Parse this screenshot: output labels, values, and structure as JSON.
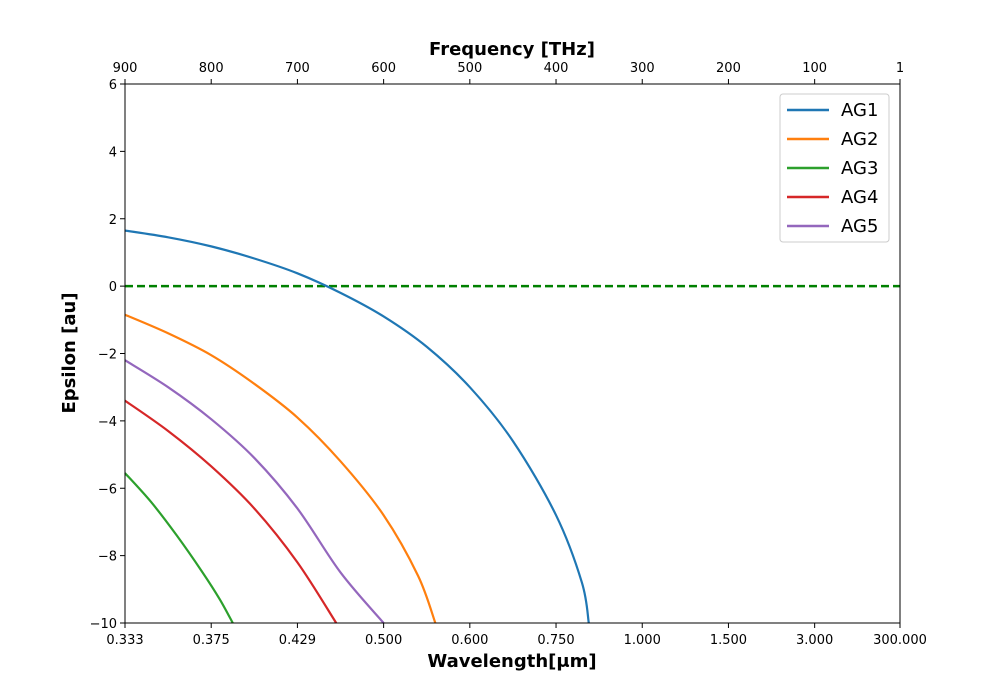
{
  "chart_data": {
    "type": "line",
    "xlabel": "Wavelength[μm]",
    "x2label": "Frequency [THz]",
    "ylabel": "Epsilon [au]",
    "ylim": [
      -10,
      6
    ],
    "y_ticks": [
      6,
      4,
      2,
      0,
      -2,
      -4,
      -6,
      -8,
      -10
    ],
    "y_tick_labels": [
      "6",
      "4",
      "2",
      "0",
      "−2",
      "−4",
      "−6",
      "−8",
      "−10"
    ],
    "x_tick_labels": [
      "0.333",
      "0.375",
      "0.429",
      "0.500",
      "0.600",
      "0.750",
      "1.000",
      "1.500",
      "3.000",
      "300.000"
    ],
    "x_tick_values": [
      0.333,
      0.375,
      0.429,
      0.5,
      0.6,
      0.75,
      1.0,
      1.5,
      3.0,
      300.0
    ],
    "top_tick_labels": [
      "900",
      "800",
      "700",
      "600",
      "500",
      "400",
      "300",
      "200",
      "100",
      "1"
    ],
    "top_tick_values": [
      900,
      800,
      700,
      600,
      500,
      400,
      300,
      200,
      100,
      1
    ],
    "legend_position": "top-right",
    "reference_line": {
      "y": 0,
      "style": "dashed",
      "color": "#008000"
    },
    "series": [
      {
        "name": "AG1",
        "color": "#1f77b4",
        "points": [
          [
            900,
            1.65
          ],
          [
            850,
            1.45
          ],
          [
            800,
            1.18
          ],
          [
            750,
            0.82
          ],
          [
            700,
            0.38
          ],
          [
            650,
            -0.2
          ],
          [
            600,
            -0.9
          ],
          [
            550,
            -1.8
          ],
          [
            500,
            -3.0
          ],
          [
            450,
            -4.6
          ],
          [
            400,
            -6.8
          ],
          [
            370,
            -8.8
          ],
          [
            362,
            -10
          ]
        ]
      },
      {
        "name": "AG2",
        "color": "#ff7f0e",
        "points": [
          [
            900,
            -0.85
          ],
          [
            850,
            -1.4
          ],
          [
            800,
            -2.05
          ],
          [
            750,
            -2.9
          ],
          [
            700,
            -3.9
          ],
          [
            650,
            -5.2
          ],
          [
            600,
            -6.8
          ],
          [
            560,
            -8.6
          ],
          [
            540,
            -10
          ]
        ]
      },
      {
        "name": "AG3",
        "color": "#2ca02c",
        "points": [
          [
            900,
            -5.55
          ],
          [
            870,
            -6.4
          ],
          [
            840,
            -7.4
          ],
          [
            810,
            -8.5
          ],
          [
            790,
            -9.3
          ],
          [
            775,
            -10
          ]
        ]
      },
      {
        "name": "AG4",
        "color": "#d62728",
        "points": [
          [
            900,
            -3.4
          ],
          [
            850,
            -4.3
          ],
          [
            800,
            -5.35
          ],
          [
            750,
            -6.6
          ],
          [
            700,
            -8.2
          ],
          [
            655,
            -10
          ]
        ]
      },
      {
        "name": "AG5",
        "color": "#9467bd",
        "points": [
          [
            900,
            -2.2
          ],
          [
            850,
            -3.0
          ],
          [
            800,
            -3.95
          ],
          [
            750,
            -5.1
          ],
          [
            700,
            -6.6
          ],
          [
            650,
            -8.5
          ],
          [
            600,
            -10
          ]
        ]
      }
    ]
  }
}
